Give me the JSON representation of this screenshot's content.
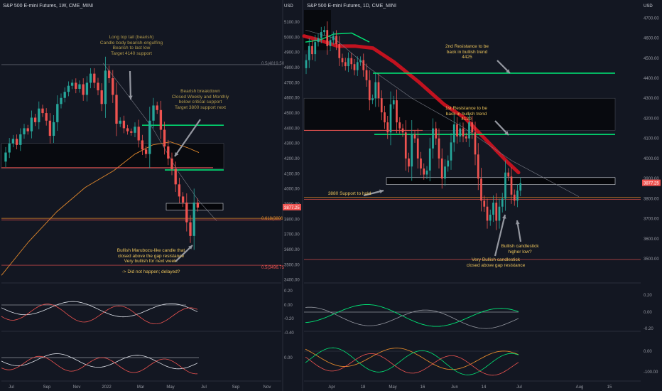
{
  "left_panel": {
    "title": "S&P 500 E-mini Futures, 1W, CME_MINI",
    "price_unit": "USD",
    "price_ticks": [
      "5100.00",
      "5000.00",
      "4900.00",
      "4800.00",
      "4700.00",
      "4600.00",
      "4500.00",
      "4400.00",
      "4300.00",
      "4200.00",
      "4100.00",
      "4000.00",
      "3900.00",
      "3800.00",
      "3700.00",
      "3600.00",
      "3500.00",
      "3400.00"
    ],
    "level_labels": [
      "0.618(3806",
      "0.5(4819.50",
      "0.5(3496.75"
    ],
    "price_tag": "3877.25",
    "x_ticks": [
      "Jul",
      "Sep",
      "Nov",
      "2022",
      "Mar",
      "May",
      "Jul",
      "Sep",
      "Nov"
    ],
    "osc1_ticks": [
      "0.20",
      "0.00",
      "-0.20",
      "-0.40"
    ],
    "osc2_ticks": [
      "0.00"
    ],
    "annotations": {
      "top_tail": "Long top tail (bearish)\nCandle body bearish-engulfing\nBearish to last low\nTarget 4140 support",
      "breakdown": "Bearish breakdown\nClosed Weekly and Monthly\nbelow critical support\nTarget 3800 support next",
      "marubozu": "Bullish Marubozu-like candle that\nclosed above the gap resistance\nVery bullish for next week.\n\n-> Did not happen; delayed?"
    }
  },
  "right_panel": {
    "title": "S&P 500 E-mini Futures, 1D, CME_MINI",
    "price_unit": "USD",
    "price_ticks": [
      "4700.00",
      "4600.00",
      "4500.00",
      "4400.00",
      "4300.00",
      "4200.00",
      "4100.00",
      "4000.00",
      "3900.00",
      "3800.00",
      "3700.00",
      "3600.00",
      "3500.00"
    ],
    "price_tag": "3877.25",
    "x_ticks": [
      "Apr",
      "18",
      "May",
      "16",
      "Jun",
      "14",
      "Jul",
      "Aug",
      "15"
    ],
    "osc1_ticks": [
      "0.20",
      "0.00",
      "-0.20"
    ],
    "osc2_ticks": [
      "0.00",
      "-100.00"
    ],
    "annotations": {
      "res2": "2nd Resistance to be\nback in bullish trend\n4425",
      "res1": "1st Resistance to be\nback in bullish trend\n4120",
      "support": "3880 Support to hold",
      "higher_low": "Bullish candlestick\nhigher low?",
      "very_bullish": "Very Bullish candlestick\nclosed above gap resistance"
    }
  },
  "colors": {
    "background": "#131722",
    "up": "#26a69a",
    "down": "#ef5350",
    "green_line": "#00e676",
    "red_band": "#c2121f",
    "orange": "#e0872b",
    "annotation": "#e8c15a"
  },
  "chart_data": [
    {
      "type": "candlestick",
      "title": "S&P 500 E-mini Futures, 1W, CME_MINI",
      "ylabel": "USD",
      "ylim": [
        3380,
        5180
      ],
      "horizontal_levels": [
        4420,
        4125,
        3806,
        4819.5,
        3496.75
      ],
      "last_price": 3877.25,
      "close": [
        4240,
        4300,
        4330,
        4290,
        4360,
        4400,
        4380,
        4470,
        4440,
        4530,
        4500,
        4450,
        4350,
        4440,
        4560,
        4600,
        4640,
        4680,
        4700,
        4660,
        4690,
        4620,
        4700,
        4760,
        4700,
        4650,
        4560,
        4780,
        4730,
        4620,
        4430,
        4450,
        4400,
        4380,
        4370,
        4410,
        4320,
        4260,
        4230,
        4450,
        4550,
        4520,
        4390,
        4280,
        4200,
        4130,
        4030,
        3950,
        3910,
        3780,
        3690,
        3910,
        3877
      ]
    },
    {
      "type": "candlestick",
      "title": "S&P 500 E-mini Futures, 1D, CME_MINI",
      "ylabel": "USD",
      "ylim": [
        3380,
        4740
      ],
      "horizontal_levels": [
        4425,
        4120,
        3880
      ],
      "last_price": 3877.25,
      "close": [
        4490,
        4560,
        4520,
        4580,
        4600,
        4630,
        4640,
        4560,
        4590,
        4610,
        4570,
        4500,
        4480,
        4460,
        4500,
        4470,
        4440,
        4480,
        4490,
        4440,
        4390,
        4290,
        4300,
        4380,
        4300,
        4230,
        4180,
        4130,
        4270,
        4290,
        4180,
        4150,
        4130,
        4000,
        3960,
        4120,
        4100,
        4000,
        3950,
        3920,
        3940,
        4050,
        4150,
        4100,
        4000,
        3900,
        3960,
        3990,
        4080,
        4170,
        4110,
        4150,
        4110,
        4100,
        4180,
        4130,
        4020,
        3900,
        3790,
        3760,
        3690,
        3720,
        3780,
        3690,
        3760,
        3800,
        3930,
        3910,
        3820,
        3790,
        3840,
        3877
      ]
    }
  ]
}
